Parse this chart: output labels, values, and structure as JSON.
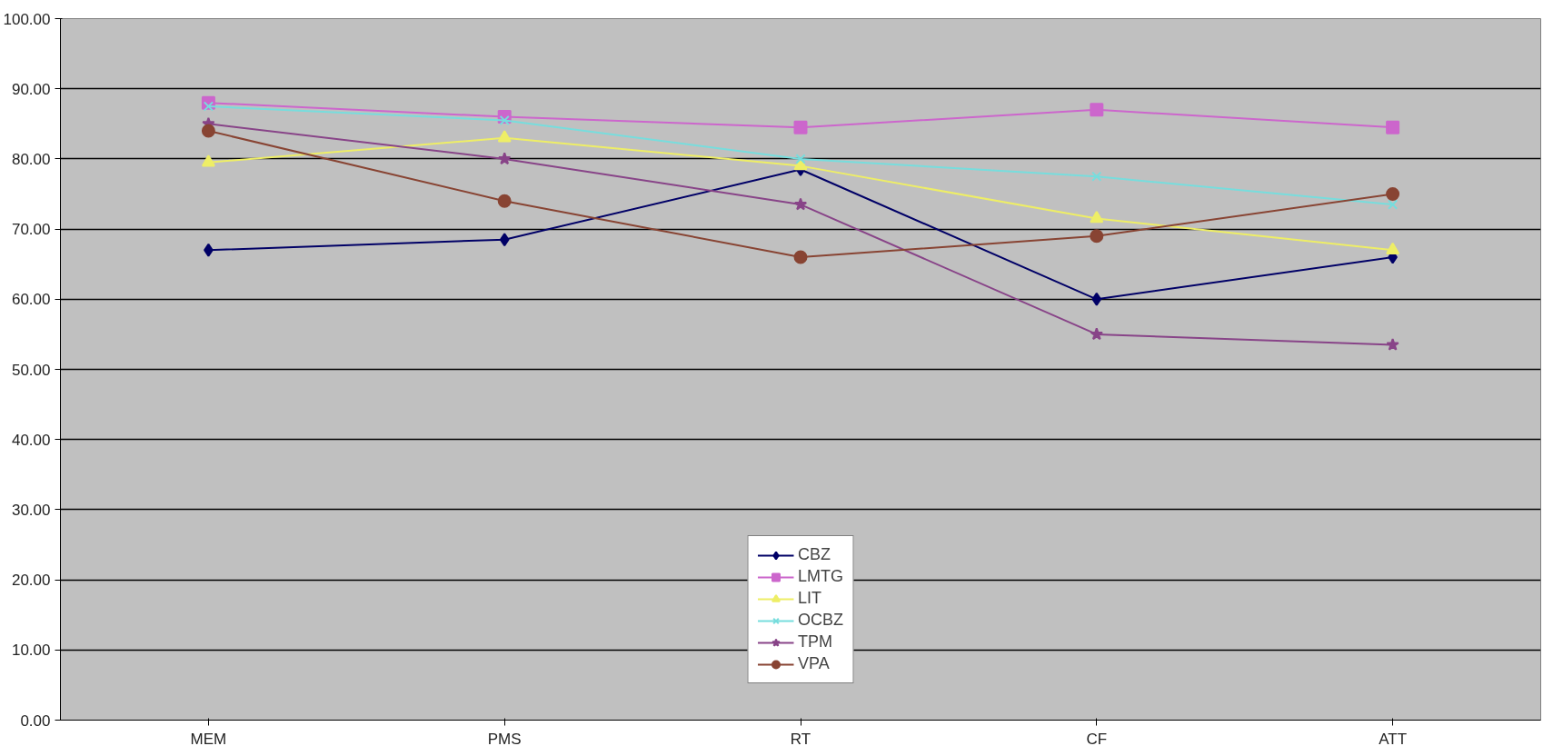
{
  "chart_data": {
    "type": "line",
    "categories": [
      "MEM",
      "PMS",
      "RT",
      "CF",
      "ATT"
    ],
    "series": [
      {
        "name": "CBZ",
        "color": "#000066",
        "marker": "diamond",
        "values": [
          67,
          68.5,
          78.5,
          60,
          66
        ]
      },
      {
        "name": "LMTG",
        "color": "#cc66cc",
        "marker": "square",
        "values": [
          88,
          86,
          84.5,
          87,
          84.5
        ]
      },
      {
        "name": "LIT",
        "color": "#eeee66",
        "marker": "triangle",
        "values": [
          79.5,
          83,
          79,
          71.5,
          67
        ]
      },
      {
        "name": "OCBZ",
        "color": "#77dddd",
        "marker": "cross",
        "values": [
          87.5,
          85.5,
          80,
          77.5,
          73.5
        ]
      },
      {
        "name": "TPM",
        "color": "#884488",
        "marker": "star",
        "values": [
          85,
          80,
          73.5,
          55,
          53.5
        ]
      },
      {
        "name": "VPA",
        "color": "#884433",
        "marker": "circle",
        "values": [
          84,
          74,
          66,
          69,
          75
        ]
      }
    ],
    "ylim": [
      0,
      100
    ],
    "yticks": [
      {
        "value": 0,
        "label": "0.00"
      },
      {
        "value": 10,
        "label": "10.00"
      },
      {
        "value": 20,
        "label": "20.00"
      },
      {
        "value": 30,
        "label": "30.00"
      },
      {
        "value": 40,
        "label": "40.00"
      },
      {
        "value": 50,
        "label": "50.00"
      },
      {
        "value": 60,
        "label": "60.00"
      },
      {
        "value": 70,
        "label": "70.00"
      },
      {
        "value": 80,
        "label": "80.00"
      },
      {
        "value": 90,
        "label": "90.00"
      },
      {
        "value": 100,
        "label": "100.00"
      }
    ],
    "grid": "y",
    "legend": "bottom"
  }
}
